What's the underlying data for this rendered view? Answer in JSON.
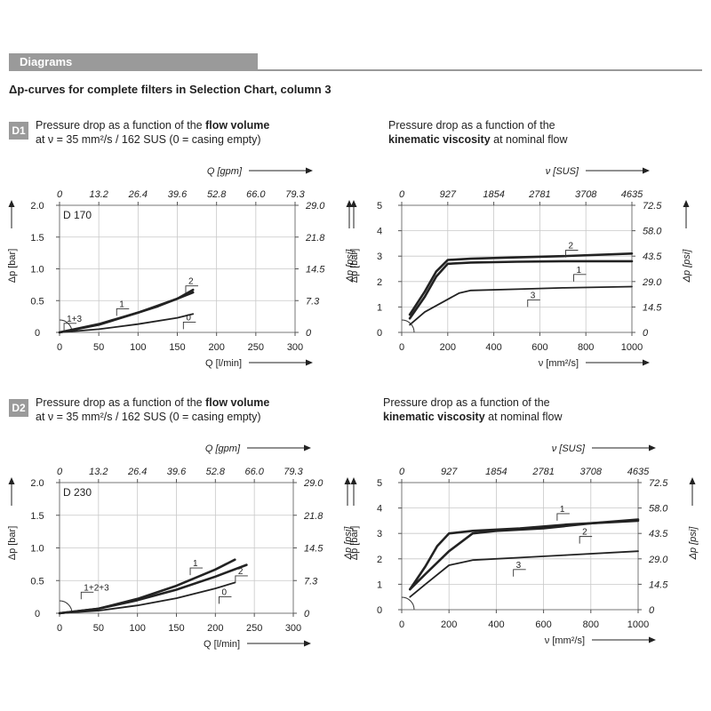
{
  "header": {
    "title": "Diagrams"
  },
  "subtitle": "Δp-curves for complete filters in Selection Chart, column 3",
  "sections": [
    {
      "badge": "D1",
      "left_desc": {
        "line1_pre": "Pressure drop as a function of the ",
        "line1_bold": "flow volume",
        "line2": "at ν = 35 mm²/s / 162 SUS (0 = casing empty)"
      },
      "right_desc": {
        "line1": "Pressure drop as a function of the",
        "line2_bold": "kinematic viscosity",
        "line2_rest": " at nominal flow"
      }
    },
    {
      "badge": "D2",
      "left_desc": {
        "line1_pre": "Pressure drop as a function of the ",
        "line1_bold": "flow volume",
        "line2": "at ν = 35 mm²/s / 162 SUS (0 = casing empty)"
      },
      "right_desc": {
        "line1": "Pressure drop as a function of the",
        "line2_bold": "kinematic viscosity",
        "line2_rest": " at nominal flow"
      }
    }
  ],
  "chart_data": [
    {
      "id": "d1-flow",
      "type": "line",
      "model": "D 170",
      "xlabel": "Q [l/min]",
      "x_ticks": [
        "0",
        "50",
        "100",
        "150",
        "200",
        "250",
        "300"
      ],
      "xlim": [
        0,
        300
      ],
      "x2label": "Q [gpm]",
      "x2_ticks": [
        "0",
        "13.2",
        "26.4",
        "39.6",
        "52.8",
        "66.0",
        "79.3"
      ],
      "ylabel": "Δp [bar]",
      "y_ticks": [
        "0",
        "0.5",
        "1.0",
        "1.5",
        "2.0"
      ],
      "ylim": [
        0,
        2.0
      ],
      "y2label": "Δp [psi]",
      "y2_ticks": [
        "0",
        "7.3",
        "14.5",
        "21.8",
        "29.0"
      ],
      "series": [
        {
          "name": "1+3",
          "x": [
            0,
            50,
            100,
            125
          ],
          "y": [
            0,
            0.13,
            0.31,
            0.41
          ]
        },
        {
          "name": "1",
          "x": [
            125,
            150,
            170
          ],
          "y": [
            0.41,
            0.53,
            0.63
          ]
        },
        {
          "name": "2",
          "x": [
            0,
            50,
            100,
            150,
            170
          ],
          "y": [
            0,
            0.12,
            0.31,
            0.53,
            0.67
          ]
        },
        {
          "name": "0",
          "x": [
            0,
            50,
            100,
            150,
            170
          ],
          "y": [
            0,
            0.05,
            0.13,
            0.23,
            0.29
          ]
        }
      ],
      "labels": [
        {
          "text": "1+3",
          "x": 8,
          "y": 0.17
        },
        {
          "text": "1",
          "x": 75,
          "y": 0.4
        },
        {
          "text": "2",
          "x": 163,
          "y": 0.76
        },
        {
          "text": "0",
          "x": 160,
          "y": 0.19
        }
      ]
    },
    {
      "id": "d1-viscosity",
      "type": "line",
      "xlabel": "ν [mm²/s]",
      "x_ticks": [
        "0",
        "200",
        "400",
        "600",
        "800",
        "1000"
      ],
      "xlim": [
        0,
        1000
      ],
      "x2label": "ν [SUS]",
      "x2_ticks": [
        "0",
        "927",
        "1854",
        "2781",
        "3708",
        "4635"
      ],
      "ylabel": "Δp [bar]",
      "y_ticks": [
        "0",
        "1",
        "2",
        "3",
        "4",
        "5"
      ],
      "ylim": [
        0,
        5
      ],
      "y2label": "Δp [psi]",
      "y2_ticks": [
        "0",
        "14.5",
        "29.0",
        "43.5",
        "58.0",
        "72.5"
      ],
      "series": [
        {
          "name": "2",
          "x": [
            35,
            100,
            150,
            200,
            300,
            500,
            700,
            1000
          ],
          "y": [
            0.7,
            1.6,
            2.4,
            2.85,
            2.9,
            2.95,
            3.0,
            3.1
          ]
        },
        {
          "name": "1",
          "x": [
            35,
            100,
            150,
            200,
            300,
            500,
            700,
            1000
          ],
          "y": [
            0.55,
            1.4,
            2.2,
            2.7,
            2.75,
            2.78,
            2.8,
            2.8
          ]
        },
        {
          "name": "3",
          "x": [
            35,
            100,
            200,
            250,
            300,
            500,
            700,
            1000
          ],
          "y": [
            0.3,
            0.8,
            1.3,
            1.55,
            1.65,
            1.7,
            1.75,
            1.8
          ]
        }
      ],
      "labels": [
        {
          "text": "2",
          "x": 720,
          "y": 3.3
        },
        {
          "text": "1",
          "x": 755,
          "y": 2.35
        },
        {
          "text": "3",
          "x": 555,
          "y": 1.35
        }
      ]
    },
    {
      "id": "d2-flow",
      "type": "line",
      "model": "D 230",
      "xlabel": "Q [l/min]",
      "x_ticks": [
        "0",
        "50",
        "100",
        "150",
        "200",
        "250",
        "300"
      ],
      "xlim": [
        0,
        300
      ],
      "x2label": "Q [gpm]",
      "x2_ticks": [
        "0",
        "13.2",
        "26.4",
        "39.6",
        "52.8",
        "66.0",
        "79.3"
      ],
      "ylabel": "Δp [bar]",
      "y_ticks": [
        "0",
        "0.5",
        "1.0",
        "1.5",
        "2.0"
      ],
      "ylim": [
        0,
        2.0
      ],
      "y2label": "Δp [psi]",
      "y2_ticks": [
        "0",
        "7.3",
        "14.5",
        "21.8",
        "29.0"
      ],
      "series": [
        {
          "name": "1+2+3",
          "x": [
            0,
            50,
            100,
            150,
            200,
            225
          ],
          "y": [
            0,
            0.07,
            0.22,
            0.42,
            0.67,
            0.82
          ]
        },
        {
          "name": "2",
          "x": [
            0,
            50,
            100,
            150,
            200,
            240
          ],
          "y": [
            0,
            0.07,
            0.2,
            0.36,
            0.56,
            0.74
          ]
        },
        {
          "name": "0",
          "x": [
            0,
            50,
            100,
            150,
            200,
            225
          ],
          "y": [
            0,
            0.04,
            0.12,
            0.23,
            0.38,
            0.47
          ]
        }
      ],
      "labels": [
        {
          "text": "1+2+3",
          "x": 30,
          "y": 0.35
        },
        {
          "text": "1",
          "x": 170,
          "y": 0.72
        },
        {
          "text": "2",
          "x": 228,
          "y": 0.6
        },
        {
          "text": "0",
          "x": 207,
          "y": 0.28
        }
      ]
    },
    {
      "id": "d2-viscosity",
      "type": "line",
      "xlabel": "ν [mm²/s]",
      "x_ticks": [
        "0",
        "200",
        "400",
        "600",
        "800",
        "1000"
      ],
      "xlim": [
        0,
        1000
      ],
      "x2label": "ν [SUS]",
      "x2_ticks": [
        "0",
        "927",
        "1854",
        "2781",
        "3708",
        "4635"
      ],
      "ylabel": "Δp [bar]",
      "y_ticks": [
        "0",
        "1",
        "2",
        "3",
        "4",
        "5"
      ],
      "ylim": [
        0,
        5
      ],
      "y2label": "Δp [psi]",
      "y2_ticks": [
        "0",
        "14.5",
        "29.0",
        "43.5",
        "58.0",
        "72.5"
      ],
      "series": [
        {
          "name": "1",
          "x": [
            35,
            100,
            150,
            200,
            300,
            500,
            700,
            1000
          ],
          "y": [
            0.8,
            1.7,
            2.5,
            3.0,
            3.1,
            3.2,
            3.35,
            3.5
          ]
        },
        {
          "name": "2",
          "x": [
            35,
            100,
            200,
            300,
            400,
            600,
            800,
            1000
          ],
          "y": [
            0.8,
            1.4,
            2.3,
            3.0,
            3.1,
            3.2,
            3.4,
            3.55
          ]
        },
        {
          "name": "3",
          "x": [
            35,
            100,
            200,
            300,
            500,
            700,
            1000
          ],
          "y": [
            0.5,
            1.0,
            1.75,
            1.95,
            2.05,
            2.15,
            2.3
          ]
        }
      ],
      "labels": [
        {
          "text": "1",
          "x": 665,
          "y": 3.85
        },
        {
          "text": "2",
          "x": 760,
          "y": 2.95
        },
        {
          "text": "3",
          "x": 480,
          "y": 1.65
        }
      ]
    }
  ]
}
